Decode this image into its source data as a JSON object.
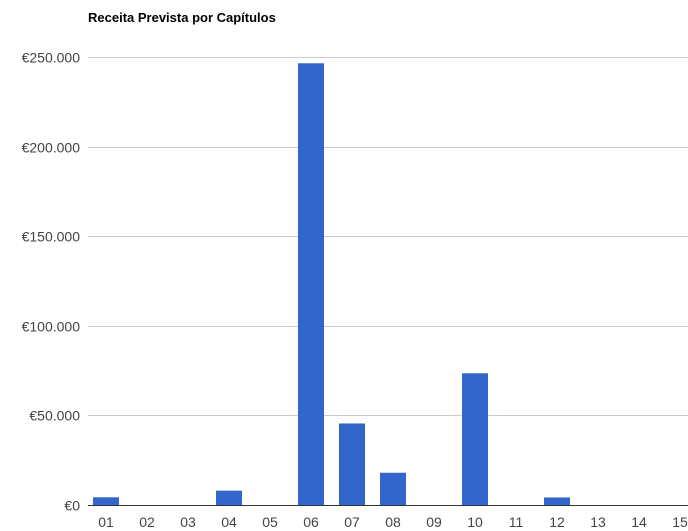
{
  "chart_data": {
    "type": "bar",
    "title": "Receita Prevista por Capítulos",
    "xlabel": "",
    "ylabel": "",
    "categories": [
      "01",
      "02",
      "03",
      "04",
      "05",
      "06",
      "07",
      "08",
      "09",
      "10",
      "11",
      "12",
      "13",
      "14",
      "15"
    ],
    "values": [
      4300,
      0,
      0,
      8000,
      0,
      246500,
      45500,
      18000,
      0,
      73500,
      0,
      4200,
      0,
      0,
      0
    ],
    "ylim": [
      0,
      250000
    ],
    "yticks": [
      0,
      50000,
      100000,
      150000,
      200000,
      250000
    ],
    "ytick_labels": [
      "€0",
      "€50.000",
      "€100.000",
      "€150.000",
      "€200.000",
      "€250.000"
    ],
    "bar_color": "#3366cc",
    "grid": true,
    "legend": "none"
  }
}
